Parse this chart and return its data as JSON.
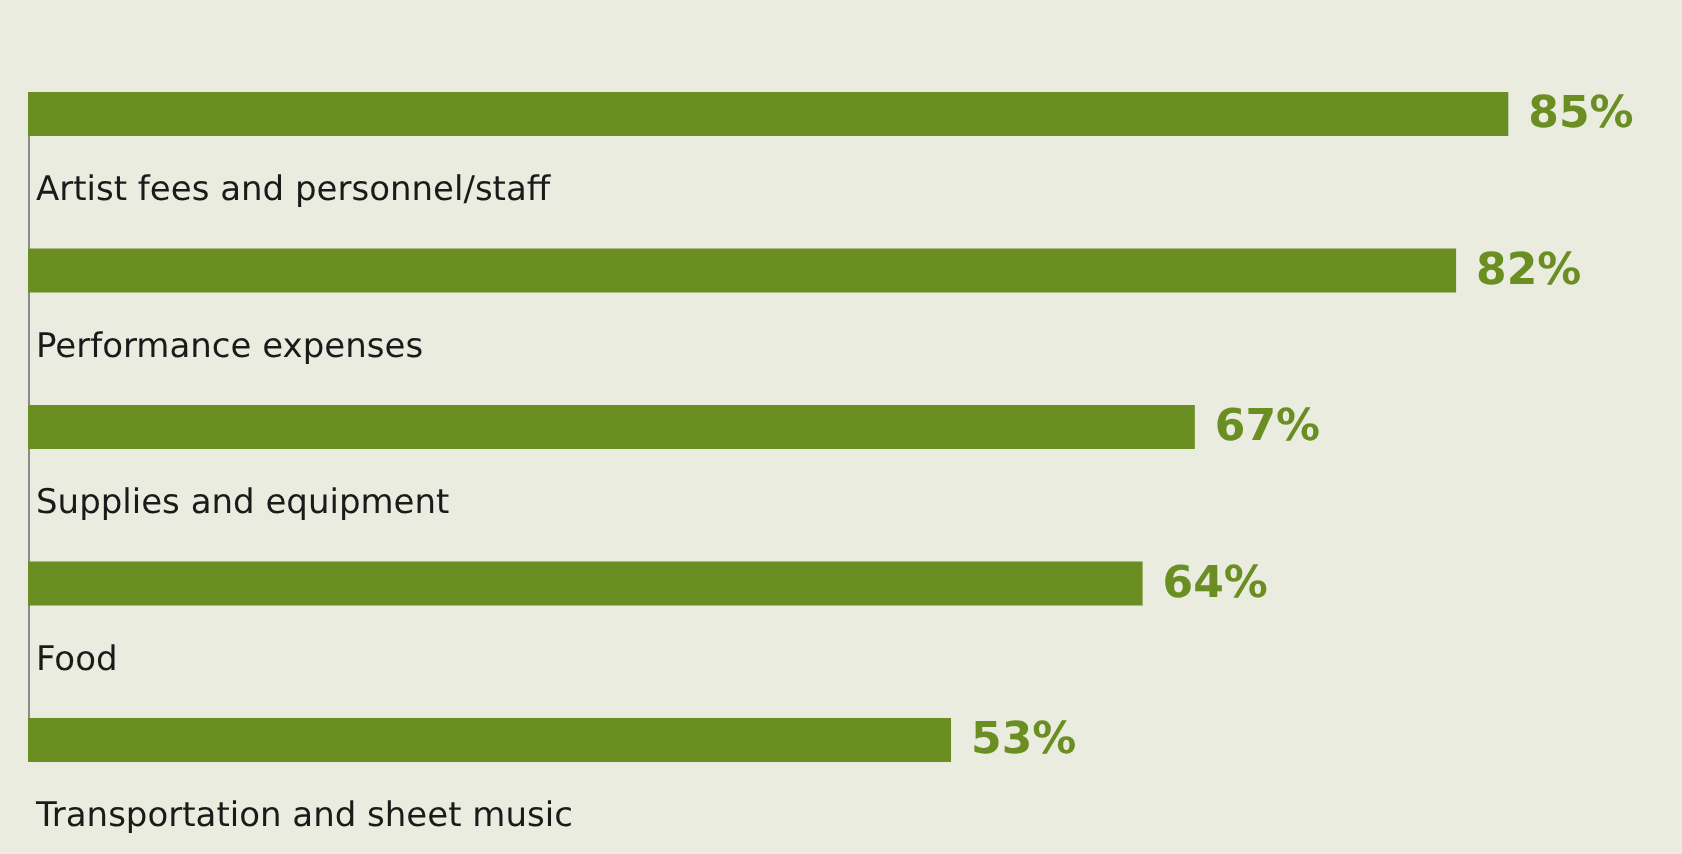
{
  "chart_data": {
    "type": "bar",
    "orientation": "horizontal",
    "categories": [
      "Artist fees and personnel/staff",
      "Performance expenses",
      "Supplies and equipment",
      "Food",
      "Transportation and sheet music"
    ],
    "values": [
      85,
      82,
      67,
      64,
      53
    ],
    "value_labels": [
      "85%",
      "82%",
      "67%",
      "64%",
      "53%"
    ],
    "color": "#6b8e23"
  }
}
